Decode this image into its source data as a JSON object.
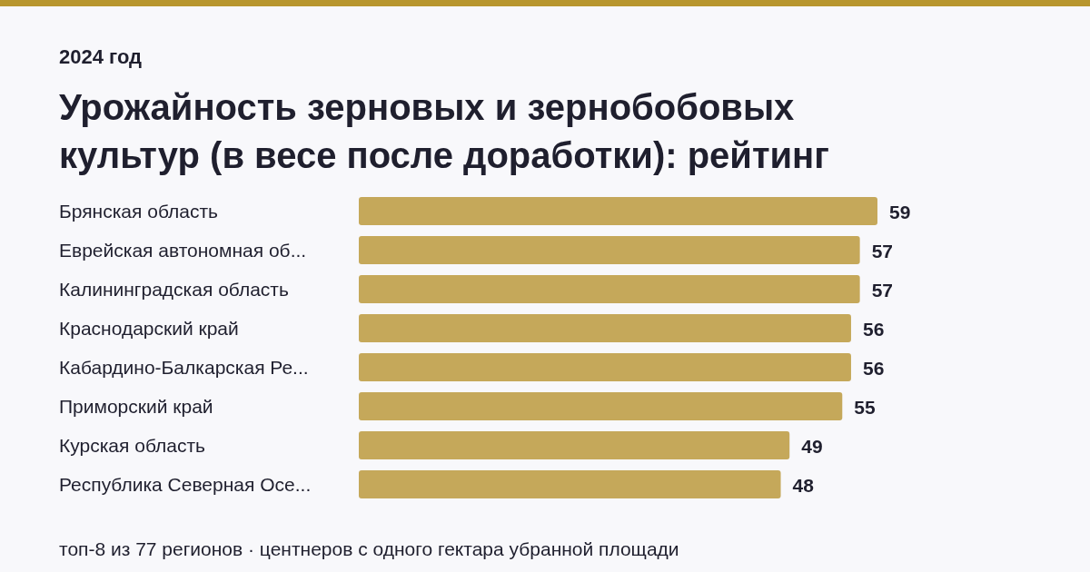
{
  "chart_data": {
    "type": "bar",
    "orientation": "horizontal",
    "subtitle": "2024 год",
    "title": "Урожайность зерновых и зернобобовых культур (в весе после доработки): рейтинг",
    "categories": [
      "Брянская область",
      "Еврейская автономная об...",
      "Калининградская область",
      "Краснодарский край",
      "Кабардино-Балкарская Ре...",
      "Приморский край",
      "Курская область",
      "Республика Северная Осе..."
    ],
    "values": [
      59,
      57,
      57,
      56,
      56,
      55,
      49,
      48
    ],
    "color": "#c5a85a",
    "data_labels": true,
    "annotations": [
      "топ-8 из 77 регионов · центнеров с одного гектара убранной площади"
    ]
  }
}
